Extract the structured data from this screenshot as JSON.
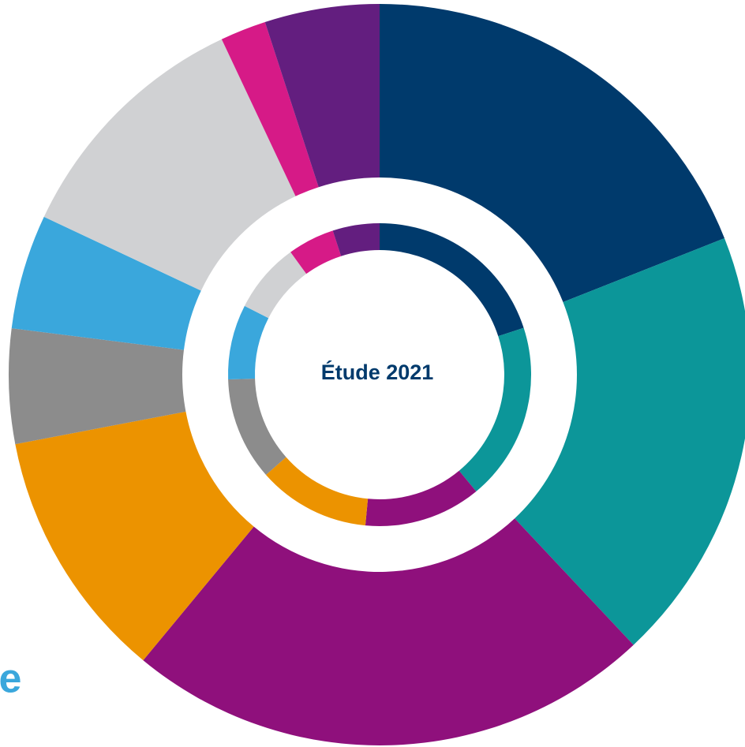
{
  "chart_data": {
    "type": "donut",
    "center_label": "Étude 2021",
    "caption": "le",
    "colors": [
      "#003a6c",
      "#0c9699",
      "#8f107c",
      "#ec9300",
      "#8c8c8c",
      "#3aa7dc",
      "#d0d1d3",
      "#d61a87",
      "#631e7f"
    ],
    "series": [
      {
        "values": [
          19,
          19,
          23,
          11,
          5,
          5,
          11,
          2,
          5
        ]
      },
      {
        "values": [
          20,
          19,
          12.5,
          12,
          11,
          8,
          7.5,
          5,
          5
        ]
      }
    ]
  }
}
